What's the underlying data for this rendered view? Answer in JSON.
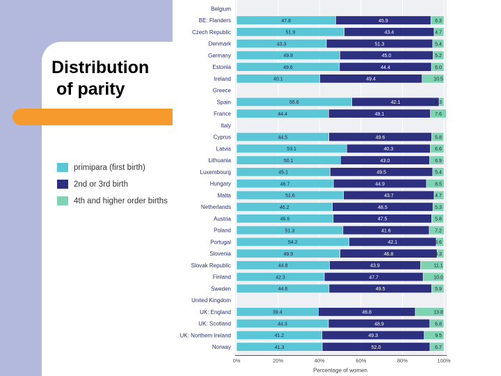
{
  "slide": {
    "title": "Distribution\n of parity"
  },
  "colors": {
    "band": "#b3b9dc",
    "accent": "#f79a2e",
    "primipara": "#5bc6d6",
    "second_third": "#2d2f7f",
    "fourth_higher": "#7fd2b2"
  },
  "chart_data": {
    "type": "bar",
    "orientation": "horizontal",
    "stacked": true,
    "xlabel": "Percentage of women",
    "xlim": [
      0,
      100
    ],
    "xticks": [
      "0%",
      "20%",
      "40%",
      "60%",
      "80%",
      "100%"
    ],
    "legend_position": "left",
    "series": [
      {
        "name": "primipara (first birth)",
        "color": "#5bc6d6"
      },
      {
        "name": "2nd or 3rd birth",
        "color": "#2d2f7f"
      },
      {
        "name": "4th and higher order births",
        "color": "#7fd2b2"
      }
    ],
    "categories": [
      {
        "label": "Belgium",
        "values": null
      },
      {
        "label": "BE: Flanders",
        "values": [
          47.8,
          45.9,
          6.3
        ]
      },
      {
        "label": "Czech Republic",
        "values": [
          51.9,
          43.4,
          4.7
        ]
      },
      {
        "label": "Denmark",
        "values": [
          43.3,
          51.3,
          5.4
        ]
      },
      {
        "label": "Germany",
        "values": [
          49.8,
          45.0,
          5.2
        ]
      },
      {
        "label": "Estonia",
        "values": [
          49.6,
          44.4,
          6.0
        ]
      },
      {
        "label": "Ireland",
        "values": [
          40.1,
          49.4,
          10.5
        ]
      },
      {
        "label": "Greece",
        "values": null
      },
      {
        "label": "Spain",
        "values": [
          55.6,
          42.1,
          2.3
        ]
      },
      {
        "label": "France",
        "values": [
          44.4,
          49.1,
          7.6
        ]
      },
      {
        "label": "Italy",
        "values": null
      },
      {
        "label": "Cyprus",
        "values": [
          44.5,
          49.6,
          5.8
        ]
      },
      {
        "label": "Latvia",
        "values": [
          53.1,
          40.3,
          6.6
        ]
      },
      {
        "label": "Lithuania",
        "values": [
          50.1,
          43.0,
          6.9
        ]
      },
      {
        "label": "Luxembourg",
        "values": [
          45.1,
          49.5,
          5.4
        ]
      },
      {
        "label": "Hungary",
        "values": [
          46.7,
          44.9,
          8.5
        ]
      },
      {
        "label": "Malta",
        "values": [
          51.6,
          43.7,
          4.7
        ]
      },
      {
        "label": "Netherlands",
        "values": [
          46.2,
          48.5,
          5.3
        ]
      },
      {
        "label": "Austria",
        "values": [
          46.6,
          47.5,
          5.8
        ]
      },
      {
        "label": "Poland",
        "values": [
          51.3,
          41.6,
          7.2
        ]
      },
      {
        "label": "Portugal",
        "values": [
          54.2,
          42.1,
          3.6
        ]
      },
      {
        "label": "Slovenia",
        "values": [
          49.9,
          46.8,
          3.3
        ]
      },
      {
        "label": "Slovak Republic",
        "values": [
          44.8,
          43.9,
          11.1
        ]
      },
      {
        "label": "Finland",
        "values": [
          42.3,
          47.7,
          10.0
        ]
      },
      {
        "label": "Sweden",
        "values": [
          44.6,
          49.5,
          5.9
        ]
      },
      {
        "label": "United Kingdom",
        "values": null
      },
      {
        "label": "UK: England",
        "values": [
          39.4,
          46.8,
          13.8
        ]
      },
      {
        "label": "UK: Scotland",
        "values": [
          44.3,
          48.9,
          6.8
        ]
      },
      {
        "label": "UK: Northern Ireland",
        "values": [
          41.2,
          49.3,
          9.5
        ]
      },
      {
        "label": "Norway",
        "values": [
          41.3,
          52.0,
          6.7
        ]
      }
    ]
  }
}
